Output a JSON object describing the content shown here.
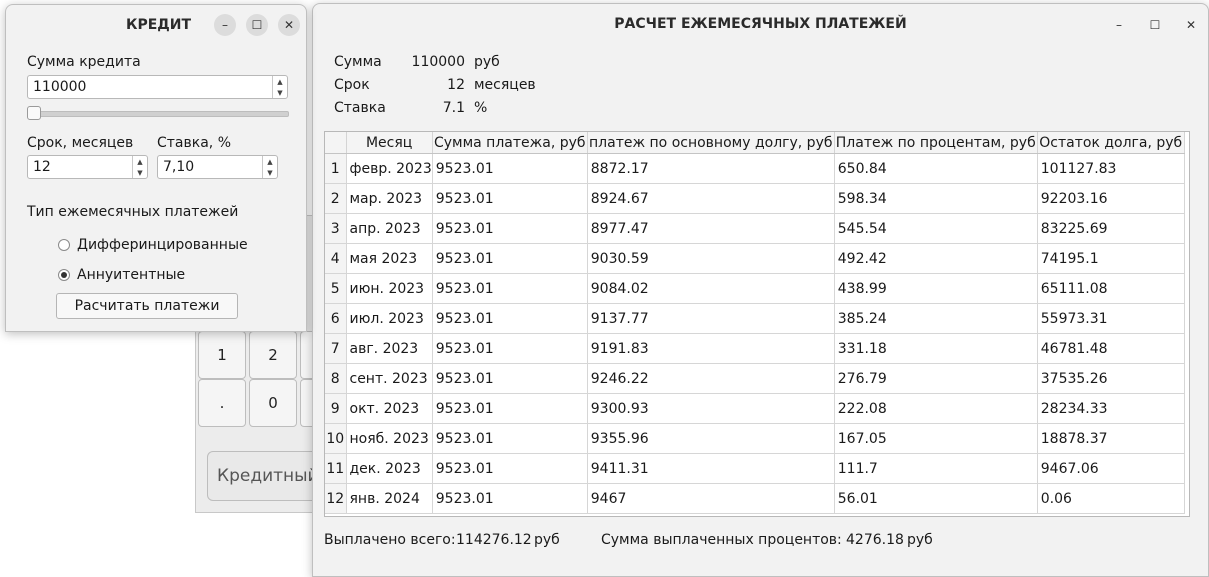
{
  "calculator": {
    "keys": [
      "1",
      "2",
      ".",
      "0"
    ],
    "mode_button_label": "Кредитный к"
  },
  "credit_window": {
    "title": "КРЕДИТ",
    "amount_label": "Сумма кредита",
    "amount_value": "110000",
    "amount_slider_fraction": 0.0,
    "term_label": "Срок, месяцев",
    "term_value": "12",
    "rate_label": "Ставка, %",
    "rate_value": "7,10",
    "payment_type_label": "Тип ежемесячных платежей",
    "options": [
      {
        "label": "Дифферинцированные",
        "selected": false
      },
      {
        "label": "Аннуитентные",
        "selected": true
      }
    ],
    "calculate_button": "Расчитать платежи"
  },
  "payments_window": {
    "title": "РАСЧЕТ ЕЖЕМЕСЯЧНЫХ ПЛАТЕЖЕЙ",
    "summary": {
      "amount_label": "Сумма",
      "amount_value": "110000",
      "amount_unit": "руб",
      "term_label": "Срок",
      "term_value": "12",
      "term_unit": "месяцев",
      "rate_label": "Ставка",
      "rate_value": "7.1",
      "rate_unit": "%"
    },
    "table": {
      "columns": [
        "Месяц",
        "Сумма платежа, руб",
        "платеж по основному долгу, руб",
        "Платеж по процентам, руб",
        "Остаток долга, руб"
      ],
      "rows": [
        [
          "1",
          "февр. 2023",
          "9523.01",
          "8872.17",
          "650.84",
          "101127.83"
        ],
        [
          "2",
          "мар. 2023",
          "9523.01",
          "8924.67",
          "598.34",
          "92203.16"
        ],
        [
          "3",
          "апр. 2023",
          "9523.01",
          "8977.47",
          "545.54",
          "83225.69"
        ],
        [
          "4",
          "мая 2023",
          "9523.01",
          "9030.59",
          "492.42",
          "74195.1"
        ],
        [
          "5",
          "июн. 2023",
          "9523.01",
          "9084.02",
          "438.99",
          "65111.08"
        ],
        [
          "6",
          "июл. 2023",
          "9523.01",
          "9137.77",
          "385.24",
          "55973.31"
        ],
        [
          "7",
          "авг. 2023",
          "9523.01",
          "9191.83",
          "331.18",
          "46781.48"
        ],
        [
          "8",
          "сент. 2023",
          "9523.01",
          "9246.22",
          "276.79",
          "37535.26"
        ],
        [
          "9",
          "окт. 2023",
          "9523.01",
          "9300.93",
          "222.08",
          "28234.33"
        ],
        [
          "10",
          "нояб. 2023",
          "9523.01",
          "9355.96",
          "167.05",
          "18878.37"
        ],
        [
          "11",
          "дек. 2023",
          "9523.01",
          "9411.31",
          "111.7",
          "9467.06"
        ],
        [
          "12",
          "янв. 2024",
          "9523.01",
          "9467",
          "56.01",
          "0.06"
        ]
      ]
    },
    "footer": {
      "total_label": "Выплачено всего:",
      "total_value": "114276.12",
      "total_unit": "руб",
      "interest_label": "Сумма выплаченных процентов:",
      "interest_value": "4276.18",
      "interest_unit": "руб"
    }
  }
}
